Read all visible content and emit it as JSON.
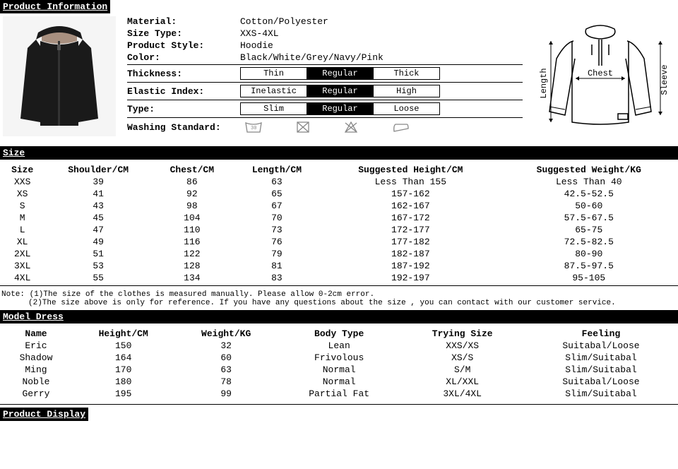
{
  "headers": {
    "product_info": "Product Information",
    "size": "Size",
    "model_dress": "Model Dress",
    "product_display": "Product Display"
  },
  "props": {
    "material_label": "Material:",
    "material_value": "Cotton/Polyester",
    "size_type_label": "Size Type:",
    "size_type_value": "XXS-4XL",
    "style_label": "Product Style:",
    "style_value": "Hoodie",
    "color_label": "Color:",
    "color_value": "Black/White/Grey/Navy/Pink",
    "thickness_label": "Thickness:",
    "elastic_label": "Elastic Index:",
    "type_label": "Type:",
    "washing_label": "Washing Standard:"
  },
  "thickness": {
    "options": [
      "Thin",
      "Regular",
      "Thick"
    ],
    "selected": 1
  },
  "elastic": {
    "options": [
      "Inelastic",
      "Regular",
      "High"
    ],
    "selected": 1
  },
  "type": {
    "options": [
      "Slim",
      "Regular",
      "Loose"
    ],
    "selected": 1
  },
  "diagram_labels": {
    "chest": "Chest",
    "length": "Length",
    "sleeve": "Sleeve"
  },
  "size_table": {
    "headers": [
      "Size",
      "Shoulder/CM",
      "Chest/CM",
      "Length/CM",
      "Suggested Height/CM",
      "Suggested Weight/KG"
    ],
    "rows": [
      [
        "XXS",
        "39",
        "86",
        "63",
        "Less Than 155",
        "Less Than 40"
      ],
      [
        "XS",
        "41",
        "92",
        "65",
        "157-162",
        "42.5-52.5"
      ],
      [
        "S",
        "43",
        "98",
        "67",
        "162-167",
        "50-60"
      ],
      [
        "M",
        "45",
        "104",
        "70",
        "167-172",
        "57.5-67.5"
      ],
      [
        "L",
        "47",
        "110",
        "73",
        "172-177",
        "65-75"
      ],
      [
        "XL",
        "49",
        "116",
        "76",
        "177-182",
        "72.5-82.5"
      ],
      [
        "2XL",
        "51",
        "122",
        "79",
        "182-187",
        "80-90"
      ],
      [
        "3XL",
        "53",
        "128",
        "81",
        "187-192",
        "87.5-97.5"
      ],
      [
        "4XL",
        "55",
        "134",
        "83",
        "192-197",
        "95-105"
      ]
    ]
  },
  "notes": {
    "line1": "Note: (1)The size of the clothes is measured manually. Please allow 0-2cm error.",
    "line2": "(2)The size above is only for reference. If you have any questions about the size , you can contact with our customer service."
  },
  "model_table": {
    "headers": [
      "Name",
      "Height/CM",
      "Weight/KG",
      "Body Type",
      "Trying Size",
      "Feeling"
    ],
    "rows": [
      [
        "Eric",
        "150",
        "32",
        "Lean",
        "XXS/XS",
        "Suitabal/Loose"
      ],
      [
        "Shadow",
        "164",
        "60",
        "Frivolous",
        "XS/S",
        "Slim/Suitabal"
      ],
      [
        "Ming",
        "170",
        "63",
        "Normal",
        "S/M",
        "Slim/Suitabal"
      ],
      [
        "Noble",
        "180",
        "78",
        "Normal",
        "XL/XXL",
        "Suitabal/Loose"
      ],
      [
        "Gerry",
        "195",
        "99",
        "Partial Fat",
        "3XL/4XL",
        "Slim/Suitabal"
      ]
    ]
  },
  "colors": {
    "black": "#000000",
    "white": "#ffffff",
    "bg": "#f5f5f5"
  }
}
